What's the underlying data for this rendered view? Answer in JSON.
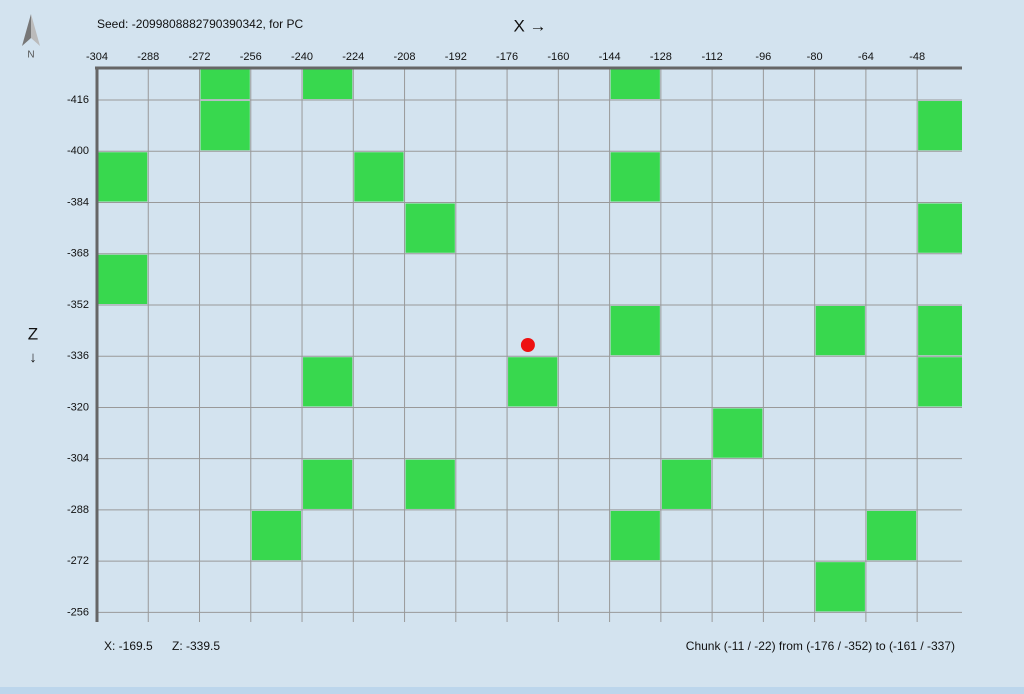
{
  "header": {
    "seed": "Seed: -2099808882790390342, for PC",
    "x_axis": "X →",
    "z_axis": "Z",
    "z_arrow": "↓",
    "compass": "N"
  },
  "map": {
    "xlim": [
      -304,
      -34
    ],
    "zlim": [
      -426,
      -253
    ],
    "xticks": [
      -304,
      -288,
      -272,
      -256,
      -240,
      -224,
      -208,
      -192,
      -176,
      -160,
      -144,
      -128,
      -112,
      -96,
      -80,
      -64,
      -48
    ],
    "zticks": [
      -416,
      -400,
      -384,
      -368,
      -352,
      -336,
      -320,
      -304,
      -288,
      -272,
      -256
    ],
    "cells": [
      {
        "x": -272,
        "z": -432
      },
      {
        "x": -240,
        "z": -432
      },
      {
        "x": -144,
        "z": -432
      },
      {
        "x": -272,
        "z": -416
      },
      {
        "x": -48,
        "z": -416
      },
      {
        "x": -304,
        "z": -400
      },
      {
        "x": -224,
        "z": -400
      },
      {
        "x": -144,
        "z": -400
      },
      {
        "x": -208,
        "z": -384
      },
      {
        "x": -48,
        "z": -384
      },
      {
        "x": -304,
        "z": -368
      },
      {
        "x": -144,
        "z": -352
      },
      {
        "x": -80,
        "z": -352
      },
      {
        "x": -48,
        "z": -352
      },
      {
        "x": -240,
        "z": -336
      },
      {
        "x": -176,
        "z": -336
      },
      {
        "x": -48,
        "z": -336
      },
      {
        "x": -112,
        "z": -320
      },
      {
        "x": -240,
        "z": -304
      },
      {
        "x": -208,
        "z": -304
      },
      {
        "x": -128,
        "z": -304
      },
      {
        "x": -256,
        "z": -288
      },
      {
        "x": -144,
        "z": -288
      },
      {
        "x": -64,
        "z": -288
      },
      {
        "x": -80,
        "z": -272
      }
    ],
    "player": {
      "x": -169.5,
      "z": -339.5
    }
  },
  "status": {
    "x_label": "X: -169.5",
    "z_label": "Z: -339.5",
    "chunk": "Chunk (-11 / -22) from (-176 / -352) to (-161 / -337)"
  }
}
